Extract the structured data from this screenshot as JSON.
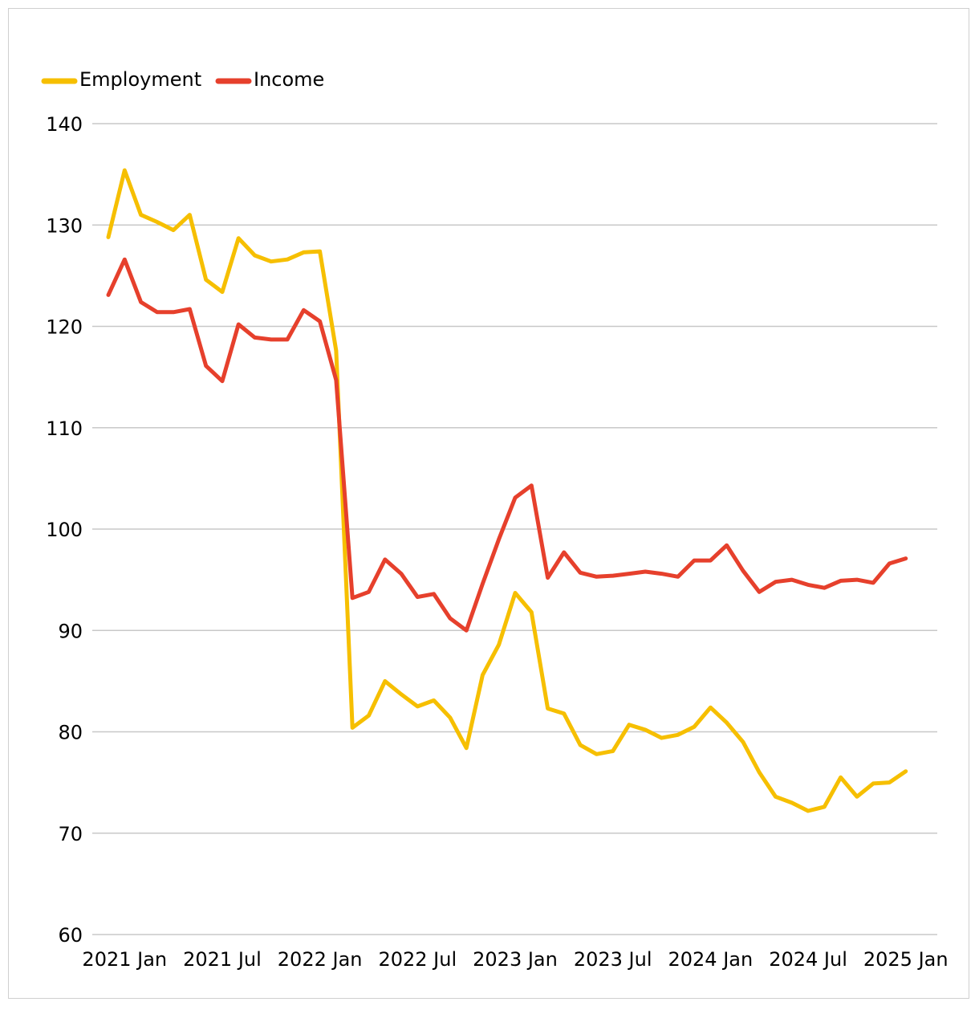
{
  "chart_data": {
    "type": "line",
    "title": "",
    "xlabel": "",
    "ylabel": "",
    "ylim": [
      60,
      140
    ],
    "yticks": [
      60,
      70,
      80,
      90,
      100,
      110,
      120,
      130,
      140
    ],
    "x_tick_labels": [
      "2021 Jan",
      "2021 Jul",
      "2022 Jan",
      "2022 Jul",
      "2023 Jan",
      "2023 Jul",
      "2024 Jan",
      "2024 Jul",
      "2025 Jan"
    ],
    "x": [
      "2020-12",
      "2021-01",
      "2021-02",
      "2021-03",
      "2021-04",
      "2021-05",
      "2021-06",
      "2021-07",
      "2021-08",
      "2021-09",
      "2021-10",
      "2021-11",
      "2021-12",
      "2022-01",
      "2022-02",
      "2022-03",
      "2022-04",
      "2022-05",
      "2022-06",
      "2022-07",
      "2022-08",
      "2022-09",
      "2022-10",
      "2022-11",
      "2022-12",
      "2023-01",
      "2023-02",
      "2023-03",
      "2023-04",
      "2023-05",
      "2023-06",
      "2023-07",
      "2023-08",
      "2023-09",
      "2023-10",
      "2023-11",
      "2023-12",
      "2024-01",
      "2024-02",
      "2024-03",
      "2024-04",
      "2024-05",
      "2024-06",
      "2024-07",
      "2024-08",
      "2024-09",
      "2024-10",
      "2024-11",
      "2024-12",
      "2025-01"
    ],
    "grid": true,
    "legend": "top-left",
    "series": [
      {
        "name": "Employment",
        "color": "#f6bf00",
        "values": [
          128.8,
          135.4,
          131.0,
          130.3,
          129.5,
          131.0,
          124.6,
          123.4,
          128.7,
          127.0,
          126.4,
          126.6,
          127.3,
          127.4,
          117.6,
          80.4,
          81.6,
          85.0,
          83.7,
          82.5,
          83.1,
          81.4,
          78.4,
          85.6,
          88.6,
          93.7,
          91.8,
          82.3,
          81.8,
          78.7,
          77.8,
          78.1,
          80.7,
          80.2,
          79.4,
          79.7,
          80.5,
          82.4,
          80.9,
          79.0,
          76.0,
          73.6,
          73.0,
          72.2,
          72.6,
          75.5,
          73.6,
          74.9,
          75.0,
          76.1
        ]
      },
      {
        "name": "Income",
        "color": "#e6402c",
        "values": [
          123.1,
          126.6,
          122.4,
          121.4,
          121.4,
          121.7,
          116.1,
          114.6,
          120.2,
          118.9,
          118.7,
          118.7,
          121.6,
          120.5,
          114.7,
          93.2,
          93.8,
          97.0,
          95.6,
          93.3,
          93.6,
          91.2,
          90.0,
          94.6,
          99.0,
          103.1,
          104.3,
          95.2,
          97.7,
          95.7,
          95.3,
          95.4,
          95.6,
          95.8,
          95.6,
          95.3,
          96.9,
          96.9,
          98.4,
          95.9,
          93.8,
          94.8,
          95.0,
          94.5,
          94.2,
          94.9,
          95.0,
          94.7,
          96.6,
          97.1
        ]
      }
    ]
  }
}
